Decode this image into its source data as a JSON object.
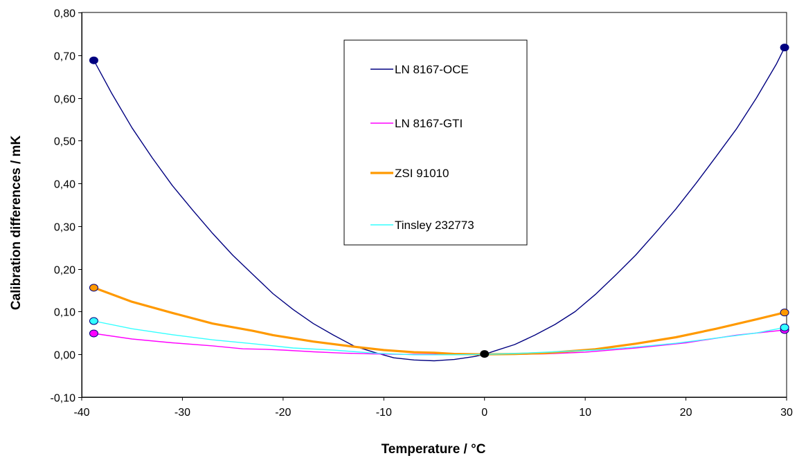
{
  "chart_data": {
    "type": "line",
    "title": "",
    "xlabel": "Temperature / °C",
    "ylabel": "Calibration differences / mK",
    "xlim": [
      -40,
      30
    ],
    "ylim": [
      -0.1,
      0.8
    ],
    "x_ticks": [
      -40,
      -30,
      -20,
      -10,
      0,
      10,
      20,
      30
    ],
    "x_tick_labels": [
      "-40",
      "-30",
      "-20",
      "-10",
      "0",
      "10",
      "20",
      "30"
    ],
    "y_ticks": [
      -0.1,
      0.0,
      0.1,
      0.2,
      0.3,
      0.4,
      0.5,
      0.6,
      0.7,
      0.8
    ],
    "y_tick_labels": [
      "-0,10",
      "0,00",
      "0,10",
      "0,20",
      "0,30",
      "0,40",
      "0,50",
      "0,60",
      "0,70",
      "0,80"
    ],
    "grid": "horizontal",
    "legend": "top-center",
    "series": [
      {
        "name": "LN 8167-OCE",
        "color": "#000080",
        "x": [
          -38.8,
          -37,
          -35,
          -33,
          -31,
          -29,
          -27,
          -25,
          -23,
          -21,
          -19,
          -17,
          -15,
          -13,
          -11,
          -9,
          -7,
          -5,
          -3,
          -1,
          0,
          1,
          3,
          5,
          7,
          9,
          11,
          13,
          15,
          17,
          19,
          21,
          23,
          25,
          27,
          29,
          29.8
        ],
        "y": [
          0.688,
          0.61,
          0.53,
          0.46,
          0.395,
          0.338,
          0.283,
          0.232,
          0.187,
          0.142,
          0.105,
          0.072,
          0.045,
          0.02,
          0.005,
          -0.008,
          -0.013,
          -0.015,
          -0.012,
          -0.005,
          0.0,
          0.008,
          0.023,
          0.045,
          0.07,
          0.1,
          0.14,
          0.185,
          0.232,
          0.285,
          0.34,
          0.4,
          0.463,
          0.527,
          0.6,
          0.68,
          0.718
        ],
        "markers": [
          [
            -38.8,
            0.688
          ],
          [
            0,
            0.001
          ],
          [
            29.8,
            0.718
          ]
        ]
      },
      {
        "name": "LN 8167-GTI",
        "color": "#FF00FF",
        "x": [
          -38.8,
          -35,
          -31,
          -27,
          -24,
          -22,
          -20,
          -17,
          -14,
          -11,
          -8,
          -5,
          -3,
          0,
          3,
          6,
          10,
          15,
          20,
          25,
          29.8
        ],
        "y": [
          0.049,
          0.036,
          0.027,
          0.02,
          0.013,
          0.012,
          0.01,
          0.006,
          0.003,
          0.001,
          0.0,
          0.0,
          -0.001,
          0.0,
          0.0,
          0.001,
          0.005,
          0.015,
          0.027,
          0.045,
          0.057
        ],
        "markers": [
          [
            -38.8,
            0.049
          ],
          [
            29.8,
            0.057
          ]
        ]
      },
      {
        "name": "ZSI 91010",
        "color": "#FF9900",
        "x": [
          -38.8,
          -35,
          -31,
          -27,
          -23,
          -21,
          -17,
          -13,
          -10,
          -7,
          -5,
          -3,
          0,
          3,
          6,
          11,
          15,
          19,
          23,
          27,
          29.8
        ],
        "y": [
          0.156,
          0.123,
          0.097,
          0.072,
          0.055,
          0.045,
          0.03,
          0.018,
          0.01,
          0.005,
          0.004,
          0.001,
          0.0,
          0.001,
          0.003,
          0.012,
          0.025,
          0.04,
          0.06,
          0.082,
          0.098
        ],
        "markers": [
          [
            -38.8,
            0.156
          ],
          [
            29.8,
            0.098
          ]
        ]
      },
      {
        "name": "Tinsley 232773",
        "color": "#33FFFF",
        "x": [
          -38.8,
          -35,
          -31,
          -27,
          -23,
          -19,
          -15,
          -11,
          -7,
          -3,
          0,
          3,
          7,
          11,
          15,
          19,
          23,
          27,
          29.8
        ],
        "y": [
          0.078,
          0.06,
          0.046,
          0.034,
          0.025,
          0.015,
          0.01,
          0.003,
          -0.001,
          -0.001,
          0.0,
          0.002,
          0.006,
          0.01,
          0.017,
          0.026,
          0.038,
          0.05,
          0.063
        ],
        "markers": [
          [
            -38.8,
            0.078
          ],
          [
            29.8,
            0.063
          ]
        ]
      }
    ]
  }
}
